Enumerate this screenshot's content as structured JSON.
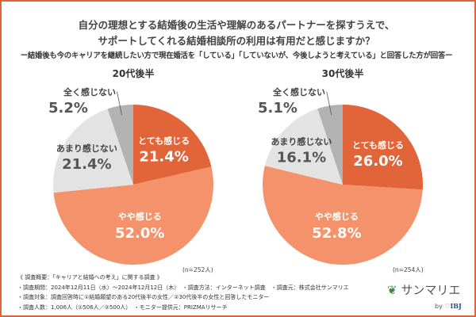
{
  "title_line1": "自分の理想とする結婚後の生活や理解のあるパートナーを探すうえで、",
  "title_line2": "サポートしてくれる結婚相談所の利用は有用だと感じますか？",
  "subtitle": "ー結婚後も今のキャリアを継続したい方で現在婚活を「している」「していないが、今後しようと考えている」と回答した方が回答ー",
  "colors": {
    "border": "#e2653a",
    "very": "#e2653a",
    "somewhat": "#f4936b",
    "notmuch": "#e3e3e3",
    "notatall": "#b2b2b2"
  },
  "chart_data": [
    {
      "type": "pie",
      "title": "20代後半",
      "n": "(n=252人)",
      "categories": [
        "とても感じる",
        "やや感じる",
        "あまり感じない",
        "全く感じない"
      ],
      "values": [
        21.4,
        52.0,
        21.4,
        5.2
      ],
      "labels": [
        "21.4%",
        "52.0%",
        "21.4%",
        "5.2%"
      ]
    },
    {
      "type": "pie",
      "title": "30代後半",
      "n": "(n=254人)",
      "categories": [
        "とても感じる",
        "やや感じる",
        "あまり感じない",
        "全く感じない"
      ],
      "values": [
        26.0,
        52.8,
        16.1,
        5.1
      ],
      "labels": [
        "26.0%",
        "52.8%",
        "16.1%",
        "5.1%"
      ]
    }
  ],
  "notes": [
    "《 調査概要：「キャリアと結婚への考え」に関する調査 》",
    "・調査期間：2024年12月11日（水）～2024年12月12日（木）　・調査方法：インターネット調査　・調査元：株式会社サンマリエ",
    "・調査対象：調査回答時に①結婚願望のある20代後半の女性／②30代後半の女性と回答したモニター",
    "・調査人数：1,006人（①506人／②500人）　・モニター提供元：PRIZMAリサーチ"
  ],
  "logo": {
    "name": "サンマリエ",
    "by": "by",
    "brand": "IBJ"
  }
}
